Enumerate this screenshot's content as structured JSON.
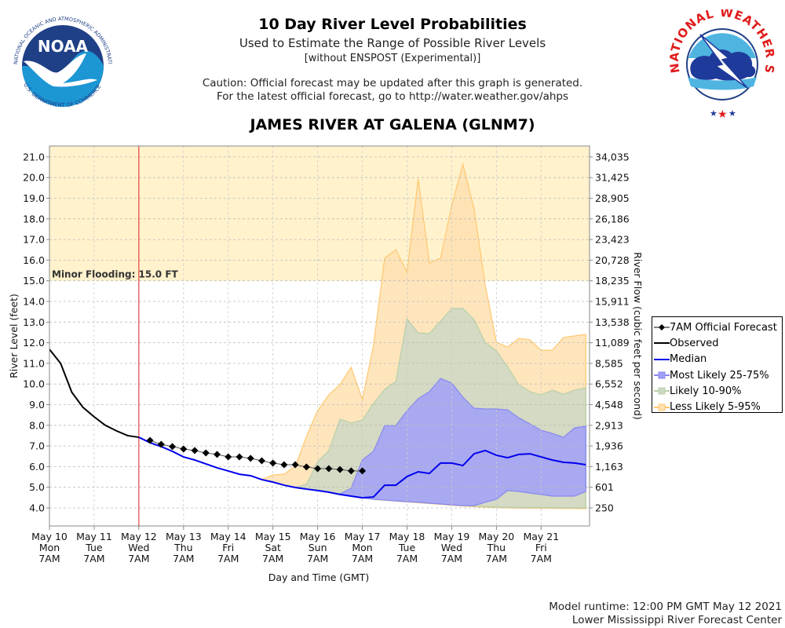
{
  "header": {
    "title": "10 Day River Level Probabilities",
    "subtitle": "Used to Estimate the Range of Possible River Levels",
    "subtitle2": "[without ENSPOST (Experimental)]",
    "caution_line1": "Caution: Official forecast may be updated after this graph is generated.",
    "caution_line2": "For the latest official forecast, go to http://water.weather.gov/ahps",
    "station": "JAMES RIVER AT GALENA (GLNM7)"
  },
  "logos": {
    "left": "NOAA",
    "left_ring_text": "NATIONAL OCEANIC AND ATMOSPHERIC ADMINISTRATION · U.S. DEPARTMENT OF COMMERCE",
    "right_ring_text": "NATIONAL WEATHER SERVICE"
  },
  "footer": {
    "runtime": "Model runtime: 12:00 PM GMT May 12 2021",
    "center": "Lower Mississippi River Forecast Center"
  },
  "colors": {
    "flood_zone": "#fff2cc",
    "less_likely": "#ffe0b0",
    "less_likely_line": "#ffc870",
    "likely": "#ccd8c4",
    "likely_line": "#b8d0a8",
    "most_likely": "#a0a0f8",
    "most_likely_line": "#8888f0",
    "median": "#0000ee",
    "observed": "#000000",
    "forecast": "#000000",
    "now_line": "#dd2222",
    "grid": "#cccccc"
  },
  "chart_data": {
    "type": "area",
    "title": "JAMES RIVER AT GALENA (GLNM7)",
    "xlabel": "Day and Time (GMT)",
    "ylabel": "River Level (feet)",
    "y2label": "River Flow (cubic feet per second)",
    "ylim": [
      3.7,
      21.5
    ],
    "xlim_hours_from_start": [
      0,
      290
    ],
    "x_start": "May 10 7AM",
    "time_step_hours": 6,
    "grid": true,
    "legend_position": "right",
    "now_marker_hours": 48,
    "flood": {
      "label": "Minor Flooding: 15.0 FT",
      "stage": 15.0
    },
    "y_ticks": [
      4.0,
      5.0,
      6.0,
      7.0,
      8.0,
      9.0,
      10.0,
      11.0,
      12.0,
      13.0,
      14.0,
      15.0,
      16.0,
      17.0,
      18.0,
      19.0,
      20.0,
      21.0
    ],
    "y_tick_labels": [
      "4.0",
      "5.0",
      "6.0",
      "7.0",
      "8.0",
      "9.0",
      "10.0",
      "11.0",
      "12.0",
      "13.0",
      "14.0",
      "15.0",
      "16.0",
      "17.0",
      "18.0",
      "19.0",
      "20.0",
      "21.0"
    ],
    "y2_ticks": [
      {
        "stage": 4.0,
        "label": "250"
      },
      {
        "stage": 5.0,
        "label": "601"
      },
      {
        "stage": 6.0,
        "label": "1,163"
      },
      {
        "stage": 7.0,
        "label": "1,936"
      },
      {
        "stage": 8.0,
        "label": "2,913"
      },
      {
        "stage": 9.0,
        "label": "4,548"
      },
      {
        "stage": 10.0,
        "label": "6,552"
      },
      {
        "stage": 11.0,
        "label": "8,585"
      },
      {
        "stage": 12.0,
        "label": "11,089"
      },
      {
        "stage": 13.0,
        "label": "13,538"
      },
      {
        "stage": 14.0,
        "label": "15,911"
      },
      {
        "stage": 15.0,
        "label": "18,235"
      },
      {
        "stage": 16.0,
        "label": "20,728"
      },
      {
        "stage": 17.0,
        "label": "23,423"
      },
      {
        "stage": 18.0,
        "label": "26,186"
      },
      {
        "stage": 19.0,
        "label": "28,905"
      },
      {
        "stage": 20.0,
        "label": "31,425"
      },
      {
        "stage": 21.0,
        "label": "34,035"
      }
    ],
    "x_ticks": [
      {
        "day": 0,
        "date": "May 10",
        "dow": "Mon",
        "time": "7AM"
      },
      {
        "day": 1,
        "date": "May 11",
        "dow": "Tue",
        "time": "7AM"
      },
      {
        "day": 2,
        "date": "May 12",
        "dow": "Wed",
        "time": "7AM"
      },
      {
        "day": 3,
        "date": "May 13",
        "dow": "Thu",
        "time": "7AM"
      },
      {
        "day": 4,
        "date": "May 14",
        "dow": "Fri",
        "time": "7AM"
      },
      {
        "day": 5,
        "date": "May 15",
        "dow": "Sat",
        "time": "7AM"
      },
      {
        "day": 6,
        "date": "May 16",
        "dow": "Sun",
        "time": "7AM"
      },
      {
        "day": 7,
        "date": "May 17",
        "dow": "Mon",
        "time": "7AM"
      },
      {
        "day": 8,
        "date": "May 18",
        "dow": "Tue",
        "time": "7AM"
      },
      {
        "day": 9,
        "date": "May 19",
        "dow": "Wed",
        "time": "7AM"
      },
      {
        "day": 10,
        "date": "May 20",
        "dow": "Thu",
        "time": "7AM"
      },
      {
        "day": 11,
        "date": "May 21",
        "dow": "Fri",
        "time": "7AM"
      }
    ],
    "legend": [
      {
        "key": "forecast",
        "label": "7AM Official Forecast"
      },
      {
        "key": "observed",
        "label": "Observed"
      },
      {
        "key": "median",
        "label": "Median"
      },
      {
        "key": "most_likely",
        "label": "Most Likely 25-75%"
      },
      {
        "key": "likely",
        "label": "Likely 10-90%"
      },
      {
        "key": "less_likely",
        "label": "Less Likely 5-95%"
      }
    ],
    "series": {
      "observed": {
        "name": "Observed",
        "start_index": 0,
        "values": [
          11.68,
          11.0,
          9.6,
          8.87,
          8.41,
          8.0,
          7.73,
          7.5,
          7.42
        ]
      },
      "forecast": {
        "name": "7AM Official Forecast",
        "start_index": 9,
        "values": [
          7.27,
          7.08,
          6.97,
          6.85,
          6.78,
          6.66,
          6.59,
          6.47,
          6.47,
          6.4,
          6.28,
          6.17,
          6.09,
          6.09,
          5.98,
          5.9,
          5.9,
          5.86,
          5.79,
          5.79
        ]
      },
      "median": {
        "name": "Median",
        "start_index": 8,
        "values": [
          7.42,
          7.16,
          6.97,
          6.74,
          6.47,
          6.32,
          6.13,
          5.94,
          5.79,
          5.63,
          5.56,
          5.37,
          5.25,
          5.1,
          4.99,
          4.91,
          4.84,
          4.76,
          4.65,
          4.57,
          4.49,
          4.53,
          5.1,
          5.1,
          5.52,
          5.75,
          5.67,
          6.17,
          6.17,
          6.05,
          6.62,
          6.78,
          6.55,
          6.43,
          6.59,
          6.62,
          6.47,
          6.32,
          6.21,
          6.17,
          6.09
        ]
      },
      "less_likely": {
        "name": "Less Likely 5-95%",
        "start_index": 19,
        "upper": [
          5.37,
          5.6,
          5.63,
          6.02,
          7.46,
          8.71,
          9.48,
          9.97,
          10.81,
          9.25,
          11.87,
          16.09,
          16.51,
          15.41,
          19.93,
          15.86,
          16.09,
          18.64,
          20.65,
          18.49,
          14.8,
          12.02,
          11.79,
          12.21,
          12.14,
          11.64,
          11.64,
          12.25,
          12.33,
          12.4
        ],
        "lower": [
          5.37,
          5.25,
          5.1,
          4.99,
          4.91,
          4.84,
          4.76,
          4.65,
          4.57,
          4.49,
          4.41,
          4.37,
          4.33,
          4.29,
          4.25,
          4.21,
          4.17,
          4.13,
          4.09,
          4.06,
          4.03,
          4.01,
          4.0,
          3.99,
          3.99,
          3.98,
          3.98,
          3.97,
          3.97,
          3.96
        ]
      },
      "likely": {
        "name": "Likely 10-90%",
        "start_index": 22,
        "upper": [
          4.99,
          5.14,
          6.24,
          6.78,
          8.3,
          8.11,
          8.26,
          9.06,
          9.74,
          10.12,
          13.16,
          12.48,
          12.44,
          13.05,
          13.66,
          13.66,
          13.12,
          12.02,
          11.6,
          10.84,
          9.97,
          9.63,
          9.48,
          9.7,
          9.51,
          9.7,
          9.82
        ],
        "lower": [
          4.99,
          4.91,
          4.84,
          4.76,
          4.65,
          4.57,
          4.49,
          4.42,
          4.38,
          4.34,
          4.3,
          4.27,
          4.23,
          4.19,
          4.15,
          4.11,
          4.09,
          4.06,
          4.04,
          4.03,
          4.02,
          4.02,
          4.01,
          4.01,
          4.0,
          4.0,
          4.0
        ]
      },
      "most_likely": {
        "name": "Most Likely 25-75%",
        "start_index": 26,
        "upper": [
          4.68,
          4.95,
          6.32,
          6.74,
          7.99,
          7.99,
          8.71,
          9.29,
          9.63,
          10.27,
          10.05,
          9.36,
          8.83,
          8.79,
          8.79,
          8.75,
          8.37,
          8.07,
          7.76,
          7.61,
          7.42,
          7.88,
          7.95
        ],
        "lower": [
          4.65,
          4.57,
          4.49,
          4.42,
          4.38,
          4.34,
          4.3,
          4.27,
          4.23,
          4.19,
          4.15,
          4.11,
          4.11,
          4.27,
          4.42,
          4.84,
          4.8,
          4.72,
          4.65,
          4.57,
          4.57,
          4.57,
          4.8
        ]
      }
    }
  }
}
